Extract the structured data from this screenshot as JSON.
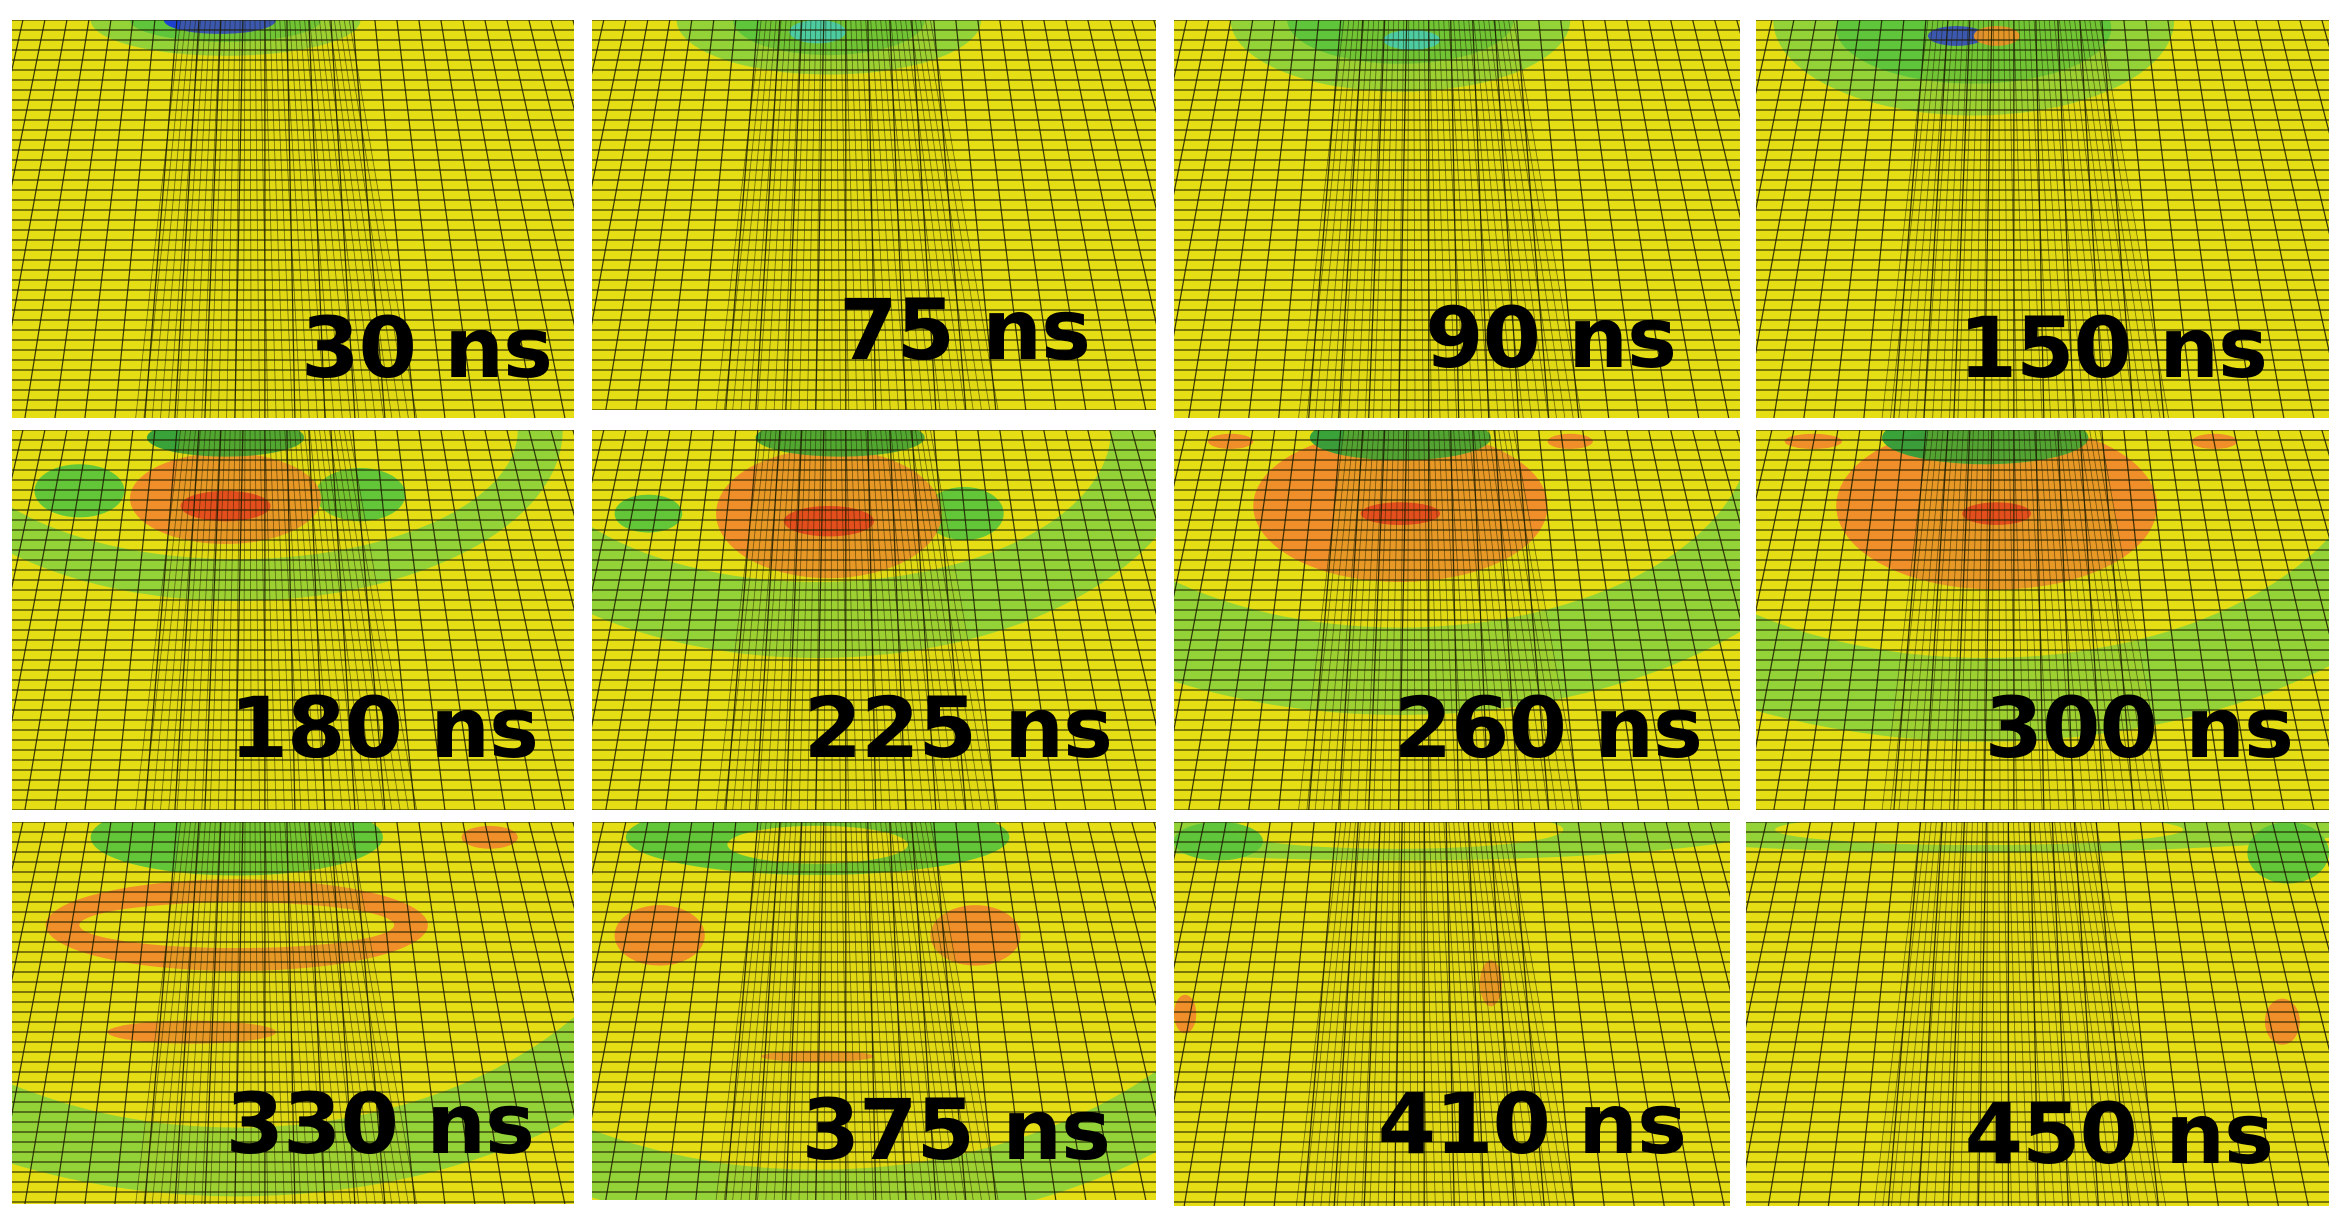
{
  "colors": {
    "mesh_background": "#e6de14",
    "mesh_line": "#1a1a00",
    "dense_zone": "#c8c018",
    "green": "#5cc43a",
    "light_green": "#8fd23a",
    "dark_green": "#2f9e3a",
    "cyan": "#2fd0c8",
    "blue": "#1a3ad8",
    "orange": "#f08a2a",
    "red": "#e8301e",
    "label_text": "#000000"
  },
  "frames": [
    {
      "label": "30 ns"
    },
    {
      "label": "75 ns"
    },
    {
      "label": "90 ns"
    },
    {
      "label": "150 ns"
    },
    {
      "label": "180 ns"
    },
    {
      "label": "225 ns"
    },
    {
      "label": "260 ns"
    },
    {
      "label": "300 ns"
    },
    {
      "label": "330 ns"
    },
    {
      "label": "375 ns"
    },
    {
      "label": "410 ns"
    },
    {
      "label": "450 ns"
    }
  ]
}
